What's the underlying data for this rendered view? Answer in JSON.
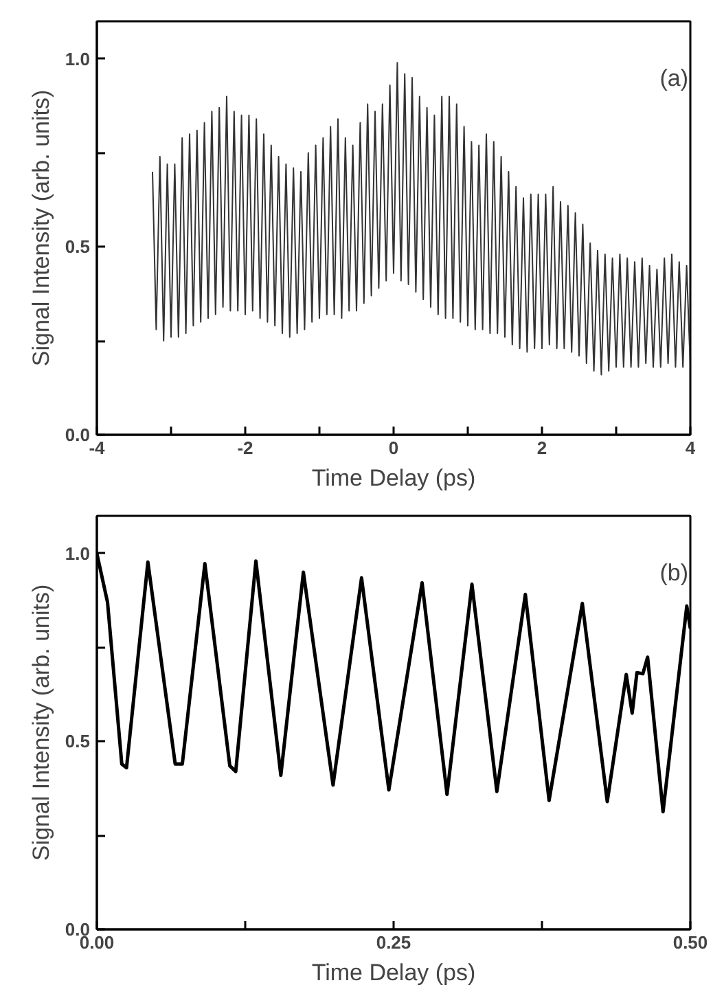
{
  "chart_data": [
    {
      "type": "line",
      "xlabel": "Time Delay (ps)",
      "ylabel": "Signal Intensity (arb. units)",
      "annotations": [
        "(a)"
      ],
      "grid": false,
      "marker": "none",
      "line_style": "solid",
      "xlim": [
        -4,
        4
      ],
      "ylim": [
        0,
        1.1
      ],
      "xticks": [
        -4,
        {
          "value": -3,
          "label": null
        },
        -2,
        {
          "value": -1,
          "label": null
        },
        0,
        {
          "value": 1,
          "label": null
        },
        2,
        {
          "value": 3,
          "label": null
        },
        4
      ],
      "yticks": [
        "0.0",
        {
          "value": 0.25,
          "label": null
        },
        {
          "value": 0.5,
          "label": "0.5"
        },
        {
          "value": 0.75,
          "label": null
        },
        {
          "value": 1.0,
          "label": "1.0"
        }
      ],
      "series": [
        {
          "color": "#333333",
          "x": [
            -3.25,
            -3.2,
            -3.15,
            -3.1,
            -3.05,
            -3.0,
            -2.95,
            -2.9,
            -2.85,
            -2.8,
            -2.75,
            -2.7,
            -2.65,
            -2.6,
            -2.55,
            -2.5,
            -2.45,
            -2.4,
            -2.35,
            -2.3,
            -2.25,
            -2.2,
            -2.15,
            -2.1,
            -2.05,
            -2.0,
            -1.95,
            -1.9,
            -1.85,
            -1.8,
            -1.75,
            -1.7,
            -1.65,
            -1.6,
            -1.55,
            -1.5,
            -1.45,
            -1.4,
            -1.35,
            -1.3,
            -1.25,
            -1.2,
            -1.15,
            -1.1,
            -1.05,
            -1.0,
            -0.95,
            -0.9,
            -0.85,
            -0.8,
            -0.75,
            -0.7,
            -0.65,
            -0.6,
            -0.55,
            -0.5,
            -0.45,
            -0.4,
            -0.35,
            -0.3,
            -0.25,
            -0.2,
            -0.15,
            -0.1,
            -0.05,
            0.0,
            0.05,
            0.1,
            0.15,
            0.2,
            0.25,
            0.3,
            0.35,
            0.4,
            0.45,
            0.5,
            0.55,
            0.6,
            0.65,
            0.7,
            0.75,
            0.8,
            0.85,
            0.9,
            0.95,
            1.0,
            1.05,
            1.1,
            1.15,
            1.2,
            1.25,
            1.3,
            1.35,
            1.4,
            1.45,
            1.5,
            1.55,
            1.6,
            1.65,
            1.7,
            1.75,
            1.8,
            1.85,
            1.9,
            1.95,
            2.0,
            2.05,
            2.1,
            2.15,
            2.2,
            2.25,
            2.3,
            2.35,
            2.4,
            2.45,
            2.5,
            2.55,
            2.6,
            2.65,
            2.7,
            2.75,
            2.8,
            2.85,
            2.9,
            2.95,
            3.0,
            3.05,
            3.1,
            3.15,
            3.2,
            3.25,
            3.3,
            3.35,
            3.4,
            3.45,
            3.5,
            3.55,
            3.6,
            3.65,
            3.7,
            3.75,
            3.8,
            3.85,
            3.9,
            3.95,
            4.0
          ],
          "values": [
            0.7,
            0.28,
            0.74,
            0.25,
            0.72,
            0.26,
            0.72,
            0.26,
            0.79,
            0.27,
            0.8,
            0.29,
            0.81,
            0.3,
            0.83,
            0.31,
            0.86,
            0.32,
            0.87,
            0.34,
            0.9,
            0.33,
            0.86,
            0.33,
            0.85,
            0.32,
            0.85,
            0.33,
            0.84,
            0.31,
            0.8,
            0.3,
            0.77,
            0.29,
            0.74,
            0.27,
            0.72,
            0.26,
            0.71,
            0.27,
            0.7,
            0.28,
            0.75,
            0.3,
            0.77,
            0.31,
            0.79,
            0.32,
            0.82,
            0.32,
            0.84,
            0.31,
            0.79,
            0.33,
            0.77,
            0.33,
            0.83,
            0.35,
            0.88,
            0.37,
            0.86,
            0.39,
            0.88,
            0.41,
            0.93,
            0.43,
            0.99,
            0.41,
            0.96,
            0.4,
            0.95,
            0.38,
            0.9,
            0.36,
            0.87,
            0.34,
            0.85,
            0.32,
            0.9,
            0.31,
            0.9,
            0.31,
            0.88,
            0.3,
            0.82,
            0.29,
            0.78,
            0.28,
            0.77,
            0.28,
            0.8,
            0.27,
            0.78,
            0.27,
            0.74,
            0.26,
            0.7,
            0.24,
            0.66,
            0.23,
            0.63,
            0.22,
            0.64,
            0.23,
            0.64,
            0.23,
            0.64,
            0.24,
            0.66,
            0.23,
            0.62,
            0.23,
            0.61,
            0.22,
            0.59,
            0.21,
            0.56,
            0.19,
            0.51,
            0.17,
            0.49,
            0.16,
            0.48,
            0.17,
            0.47,
            0.18,
            0.48,
            0.18,
            0.47,
            0.18,
            0.46,
            0.18,
            0.47,
            0.19,
            0.45,
            0.18,
            0.44,
            0.18,
            0.47,
            0.19,
            0.48,
            0.18,
            0.46,
            0.18,
            0.45,
            0.18
          ]
        }
      ]
    },
    {
      "type": "line",
      "xlabel": "Time Delay (ps)",
      "ylabel": "Signal Intensity (arb. units)",
      "annotations": [
        "(b)"
      ],
      "grid": false,
      "marker": "none",
      "line_style": "solid",
      "xlim": [
        0,
        0.5
      ],
      "ylim": [
        0,
        1.1
      ],
      "xticks": [
        {
          "value": 0,
          "label": "0.00"
        },
        {
          "value": 0.125,
          "label": null
        },
        0.25,
        {
          "value": 0.375,
          "label": null
        },
        {
          "value": 0.5,
          "label": "0.50"
        }
      ],
      "yticks": [
        {
          "value": 0,
          "label": "0.0"
        },
        {
          "value": 0.25,
          "label": null
        },
        0.5,
        {
          "value": 0.75,
          "label": null
        },
        {
          "value": 1.0,
          "label": "1.0"
        }
      ],
      "series": [
        {
          "color": "#000000",
          "x": [
            0,
            0.009,
            0.021,
            0.025,
            0.043,
            0.066,
            0.072,
            0.091,
            0.112,
            0.117,
            0.134,
            0.155,
            0.174,
            0.199,
            0.223,
            0.246,
            0.274,
            0.295,
            0.316,
            0.337,
            0.361,
            0.381,
            0.409,
            0.43,
            0.446,
            0.451,
            0.455,
            0.46,
            0.464,
            0.477,
            0.497,
            0.5
          ],
          "values": [
            1.0,
            0.87,
            0.44,
            0.43,
            0.977,
            0.44,
            0.44,
            0.973,
            0.435,
            0.42,
            0.98,
            0.41,
            0.95,
            0.384,
            0.935,
            0.371,
            0.922,
            0.359,
            0.918,
            0.367,
            0.891,
            0.343,
            0.867,
            0.34,
            0.678,
            0.575,
            0.683,
            0.68,
            0.724,
            0.313,
            0.86,
            0.8
          ]
        }
      ]
    }
  ]
}
